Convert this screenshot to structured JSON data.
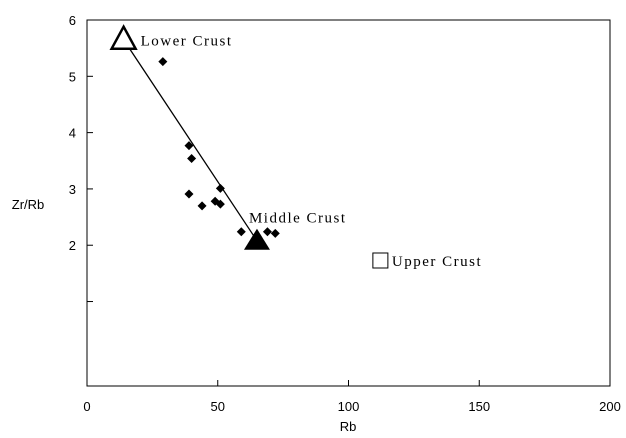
{
  "chart_data": {
    "type": "scatter",
    "xlabel": "Rb",
    "ylabel": "Zr/Rb",
    "xlim": [
      0,
      200
    ],
    "ylim": [
      -0.5,
      6
    ],
    "x_ticks": [
      0,
      50,
      100,
      150,
      200
    ],
    "y_ticks": [
      2,
      3,
      4,
      5,
      6
    ],
    "y_tick_marks": [
      1,
      2,
      3,
      4,
      5,
      6
    ],
    "grid": false,
    "series": [
      {
        "marker": "diamond",
        "color": "#000000",
        "points": [
          {
            "x": 29,
            "y": 5.26
          },
          {
            "x": 39,
            "y": 3.77
          },
          {
            "x": 40,
            "y": 3.54
          },
          {
            "x": 39,
            "y": 2.91
          },
          {
            "x": 44,
            "y": 2.7
          },
          {
            "x": 49,
            "y": 2.78
          },
          {
            "x": 51,
            "y": 2.73
          },
          {
            "x": 51,
            "y": 3.01
          },
          {
            "x": 59,
            "y": 2.24
          },
          {
            "x": 69,
            "y": 2.24
          },
          {
            "x": 72,
            "y": 2.21
          }
        ]
      }
    ],
    "trend_line": {
      "from": {
        "x": 14,
        "y": 5.65
      },
      "to": {
        "x": 65,
        "y": 2.08
      }
    },
    "reference_points": [
      {
        "label": "Lower Crust",
        "marker": "open-triangle",
        "x": 14,
        "y": 5.65
      },
      {
        "label": "Middle Crust",
        "marker": "filled-triangle",
        "x": 65,
        "y": 2.08
      },
      {
        "label": "Upper Crust",
        "marker": "open-square",
        "x": 112,
        "y": 1.72
      }
    ]
  }
}
